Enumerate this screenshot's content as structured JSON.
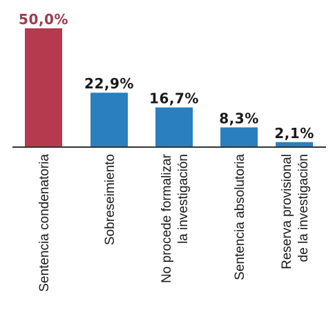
{
  "chart_data": {
    "type": "bar",
    "categories": [
      [
        "Sentencia condenatoria"
      ],
      [
        "Sobreseimiento"
      ],
      [
        "No procede formalizar",
        "la investigación"
      ],
      [
        "Sentencia absolutoria"
      ],
      [
        "Reserva provisional",
        "de la investigación"
      ]
    ],
    "values": [
      50.0,
      22.9,
      16.7,
      8.3,
      2.1
    ],
    "value_labels": [
      "50,0%",
      "22,9%",
      "16,7%",
      "8,3%",
      "2,1%"
    ],
    "bar_colors": [
      "#b53a4e",
      "#2a7fbf",
      "#2a7fbf",
      "#2a7fbf",
      "#2a7fbf"
    ],
    "value_label_colors": [
      "#9e3a4f",
      "#1a1a1a",
      "#1a1a1a",
      "#1a1a1a",
      "#1a1a1a"
    ],
    "ylim": [
      0,
      50
    ],
    "grid": false,
    "title": "",
    "xlabel": "",
    "ylabel": ""
  }
}
